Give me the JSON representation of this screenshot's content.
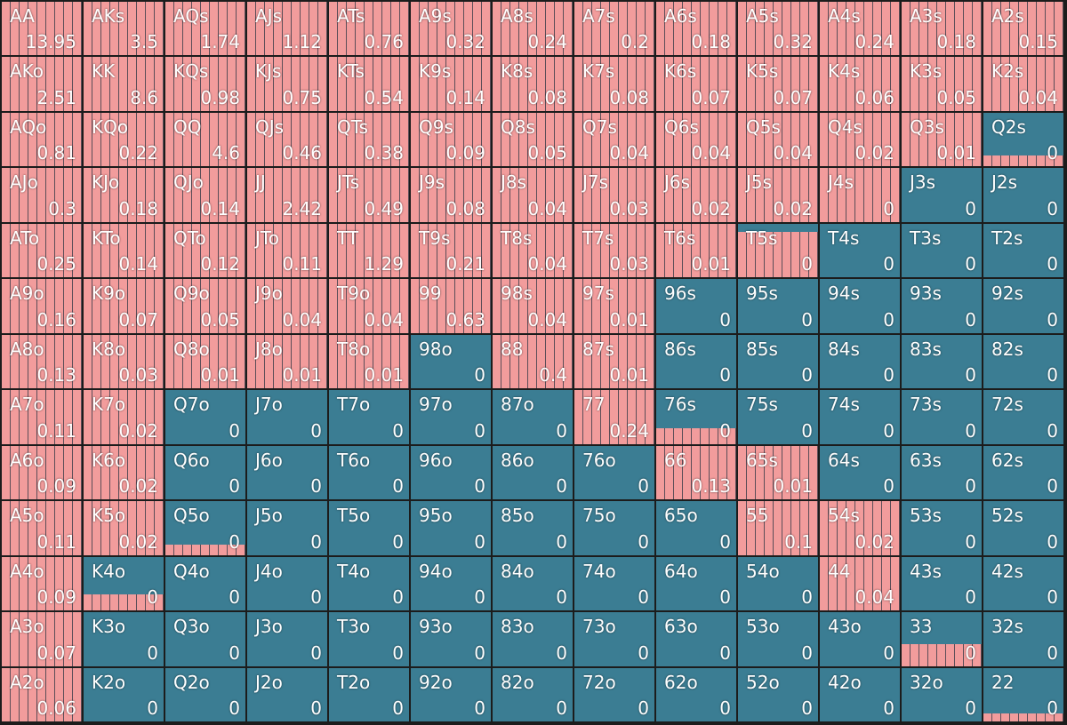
{
  "grid": {
    "rows": [
      [
        {
          "hand": "AA",
          "value": 13.95,
          "fill": 1
        },
        {
          "hand": "AKs",
          "value": 3.5,
          "fill": 1
        },
        {
          "hand": "AQs",
          "value": 1.74,
          "fill": 1
        },
        {
          "hand": "AJs",
          "value": 1.12,
          "fill": 1
        },
        {
          "hand": "ATs",
          "value": 0.76,
          "fill": 1
        },
        {
          "hand": "A9s",
          "value": 0.32,
          "fill": 1
        },
        {
          "hand": "A8s",
          "value": 0.24,
          "fill": 1
        },
        {
          "hand": "A7s",
          "value": 0.2,
          "fill": 1
        },
        {
          "hand": "A6s",
          "value": 0.18,
          "fill": 1
        },
        {
          "hand": "A5s",
          "value": 0.32,
          "fill": 1
        },
        {
          "hand": "A4s",
          "value": 0.24,
          "fill": 1
        },
        {
          "hand": "A3s",
          "value": 0.18,
          "fill": 1
        },
        {
          "hand": "A2s",
          "value": 0.15,
          "fill": 1
        }
      ],
      [
        {
          "hand": "AKo",
          "value": 2.51,
          "fill": 1
        },
        {
          "hand": "KK",
          "value": 8.6,
          "fill": 1
        },
        {
          "hand": "KQs",
          "value": 0.98,
          "fill": 1
        },
        {
          "hand": "KJs",
          "value": 0.75,
          "fill": 1
        },
        {
          "hand": "KTs",
          "value": 0.54,
          "fill": 1
        },
        {
          "hand": "K9s",
          "value": 0.14,
          "fill": 1
        },
        {
          "hand": "K8s",
          "value": 0.08,
          "fill": 1
        },
        {
          "hand": "K7s",
          "value": 0.08,
          "fill": 1
        },
        {
          "hand": "K6s",
          "value": 0.07,
          "fill": 1
        },
        {
          "hand": "K5s",
          "value": 0.07,
          "fill": 1
        },
        {
          "hand": "K4s",
          "value": 0.06,
          "fill": 1
        },
        {
          "hand": "K3s",
          "value": 0.05,
          "fill": 1
        },
        {
          "hand": "K2s",
          "value": 0.04,
          "fill": 1
        }
      ],
      [
        {
          "hand": "AQo",
          "value": 0.81,
          "fill": 1
        },
        {
          "hand": "KQo",
          "value": 0.22,
          "fill": 1
        },
        {
          "hand": "QQ",
          "value": 4.6,
          "fill": 1
        },
        {
          "hand": "QJs",
          "value": 0.46,
          "fill": 1
        },
        {
          "hand": "QTs",
          "value": 0.38,
          "fill": 1
        },
        {
          "hand": "Q9s",
          "value": 0.09,
          "fill": 1
        },
        {
          "hand": "Q8s",
          "value": 0.05,
          "fill": 1
        },
        {
          "hand": "Q7s",
          "value": 0.04,
          "fill": 1
        },
        {
          "hand": "Q6s",
          "value": 0.04,
          "fill": 1
        },
        {
          "hand": "Q5s",
          "value": 0.04,
          "fill": 1
        },
        {
          "hand": "Q4s",
          "value": 0.02,
          "fill": 1
        },
        {
          "hand": "Q3s",
          "value": 0.01,
          "fill": 1
        },
        {
          "hand": "Q2s",
          "value": 0,
          "fill": 0.2
        }
      ],
      [
        {
          "hand": "AJo",
          "value": 0.3,
          "fill": 1
        },
        {
          "hand": "KJo",
          "value": 0.18,
          "fill": 1
        },
        {
          "hand": "QJo",
          "value": 0.14,
          "fill": 1
        },
        {
          "hand": "JJ",
          "value": 2.42,
          "fill": 1
        },
        {
          "hand": "JTs",
          "value": 0.49,
          "fill": 1
        },
        {
          "hand": "J9s",
          "value": 0.08,
          "fill": 1
        },
        {
          "hand": "J8s",
          "value": 0.04,
          "fill": 1
        },
        {
          "hand": "J7s",
          "value": 0.03,
          "fill": 1
        },
        {
          "hand": "J6s",
          "value": 0.02,
          "fill": 1
        },
        {
          "hand": "J5s",
          "value": 0.02,
          "fill": 1
        },
        {
          "hand": "J4s",
          "value": 0,
          "fill": 1
        },
        {
          "hand": "J3s",
          "value": 0,
          "fill": 0
        },
        {
          "hand": "J2s",
          "value": 0,
          "fill": 0
        }
      ],
      [
        {
          "hand": "ATo",
          "value": 0.25,
          "fill": 1
        },
        {
          "hand": "KTo",
          "value": 0.14,
          "fill": 1
        },
        {
          "hand": "QTo",
          "value": 0.12,
          "fill": 1
        },
        {
          "hand": "JTo",
          "value": 0.11,
          "fill": 1
        },
        {
          "hand": "TT",
          "value": 1.29,
          "fill": 1
        },
        {
          "hand": "T9s",
          "value": 0.21,
          "fill": 1
        },
        {
          "hand": "T8s",
          "value": 0.04,
          "fill": 1
        },
        {
          "hand": "T7s",
          "value": 0.03,
          "fill": 1
        },
        {
          "hand": "T6s",
          "value": 0.01,
          "fill": 1
        },
        {
          "hand": "T5s",
          "value": 0,
          "fill": 0.85
        },
        {
          "hand": "T4s",
          "value": 0,
          "fill": 0
        },
        {
          "hand": "T3s",
          "value": 0,
          "fill": 0
        },
        {
          "hand": "T2s",
          "value": 0,
          "fill": 0
        }
      ],
      [
        {
          "hand": "A9o",
          "value": 0.16,
          "fill": 1
        },
        {
          "hand": "K9o",
          "value": 0.07,
          "fill": 1
        },
        {
          "hand": "Q9o",
          "value": 0.05,
          "fill": 1
        },
        {
          "hand": "J9o",
          "value": 0.04,
          "fill": 1
        },
        {
          "hand": "T9o",
          "value": 0.04,
          "fill": 1
        },
        {
          "hand": "99",
          "value": 0.63,
          "fill": 1
        },
        {
          "hand": "98s",
          "value": 0.04,
          "fill": 1
        },
        {
          "hand": "97s",
          "value": 0.01,
          "fill": 1
        },
        {
          "hand": "96s",
          "value": 0,
          "fill": 0
        },
        {
          "hand": "95s",
          "value": 0,
          "fill": 0
        },
        {
          "hand": "94s",
          "value": 0,
          "fill": 0
        },
        {
          "hand": "93s",
          "value": 0,
          "fill": 0
        },
        {
          "hand": "92s",
          "value": 0,
          "fill": 0
        }
      ],
      [
        {
          "hand": "A8o",
          "value": 0.13,
          "fill": 1
        },
        {
          "hand": "K8o",
          "value": 0.03,
          "fill": 1
        },
        {
          "hand": "Q8o",
          "value": 0.01,
          "fill": 1
        },
        {
          "hand": "J8o",
          "value": 0.01,
          "fill": 1
        },
        {
          "hand": "T8o",
          "value": 0.01,
          "fill": 1
        },
        {
          "hand": "98o",
          "value": 0,
          "fill": 0
        },
        {
          "hand": "88",
          "value": 0.4,
          "fill": 1
        },
        {
          "hand": "87s",
          "value": 0.01,
          "fill": 1
        },
        {
          "hand": "86s",
          "value": 0,
          "fill": 0
        },
        {
          "hand": "85s",
          "value": 0,
          "fill": 0
        },
        {
          "hand": "84s",
          "value": 0,
          "fill": 0
        },
        {
          "hand": "83s",
          "value": 0,
          "fill": 0
        },
        {
          "hand": "82s",
          "value": 0,
          "fill": 0
        }
      ],
      [
        {
          "hand": "A7o",
          "value": 0.11,
          "fill": 1
        },
        {
          "hand": "K7o",
          "value": 0.02,
          "fill": 1
        },
        {
          "hand": "Q7o",
          "value": 0,
          "fill": 0
        },
        {
          "hand": "J7o",
          "value": 0,
          "fill": 0
        },
        {
          "hand": "T7o",
          "value": 0,
          "fill": 0
        },
        {
          "hand": "97o",
          "value": 0,
          "fill": 0
        },
        {
          "hand": "87o",
          "value": 0,
          "fill": 0
        },
        {
          "hand": "77",
          "value": 0.24,
          "fill": 1
        },
        {
          "hand": "76s",
          "value": 0,
          "fill": 0.3
        },
        {
          "hand": "75s",
          "value": 0,
          "fill": 0
        },
        {
          "hand": "74s",
          "value": 0,
          "fill": 0
        },
        {
          "hand": "73s",
          "value": 0,
          "fill": 0
        },
        {
          "hand": "72s",
          "value": 0,
          "fill": 0
        }
      ],
      [
        {
          "hand": "A6o",
          "value": 0.09,
          "fill": 1
        },
        {
          "hand": "K6o",
          "value": 0.02,
          "fill": 1
        },
        {
          "hand": "Q6o",
          "value": 0,
          "fill": 0
        },
        {
          "hand": "J6o",
          "value": 0,
          "fill": 0
        },
        {
          "hand": "T6o",
          "value": 0,
          "fill": 0
        },
        {
          "hand": "96o",
          "value": 0,
          "fill": 0
        },
        {
          "hand": "86o",
          "value": 0,
          "fill": 0
        },
        {
          "hand": "76o",
          "value": 0,
          "fill": 0
        },
        {
          "hand": "66",
          "value": 0.13,
          "fill": 1
        },
        {
          "hand": "65s",
          "value": 0.01,
          "fill": 1
        },
        {
          "hand": "64s",
          "value": 0,
          "fill": 0
        },
        {
          "hand": "63s",
          "value": 0,
          "fill": 0
        },
        {
          "hand": "62s",
          "value": 0,
          "fill": 0
        }
      ],
      [
        {
          "hand": "A5o",
          "value": 0.11,
          "fill": 1
        },
        {
          "hand": "K5o",
          "value": 0.02,
          "fill": 1
        },
        {
          "hand": "Q5o",
          "value": 0,
          "fill": 0.2
        },
        {
          "hand": "J5o",
          "value": 0,
          "fill": 0
        },
        {
          "hand": "T5o",
          "value": 0,
          "fill": 0
        },
        {
          "hand": "95o",
          "value": 0,
          "fill": 0
        },
        {
          "hand": "85o",
          "value": 0,
          "fill": 0
        },
        {
          "hand": "75o",
          "value": 0,
          "fill": 0
        },
        {
          "hand": "65o",
          "value": 0,
          "fill": 0
        },
        {
          "hand": "55",
          "value": 0.1,
          "fill": 1
        },
        {
          "hand": "54s",
          "value": 0.02,
          "fill": 1
        },
        {
          "hand": "53s",
          "value": 0,
          "fill": 0
        },
        {
          "hand": "52s",
          "value": 0,
          "fill": 0
        }
      ],
      [
        {
          "hand": "A4o",
          "value": 0.09,
          "fill": 1
        },
        {
          "hand": "K4o",
          "value": 0,
          "fill": 0.3
        },
        {
          "hand": "Q4o",
          "value": 0,
          "fill": 0
        },
        {
          "hand": "J4o",
          "value": 0,
          "fill": 0
        },
        {
          "hand": "T4o",
          "value": 0,
          "fill": 0
        },
        {
          "hand": "94o",
          "value": 0,
          "fill": 0
        },
        {
          "hand": "84o",
          "value": 0,
          "fill": 0
        },
        {
          "hand": "74o",
          "value": 0,
          "fill": 0
        },
        {
          "hand": "64o",
          "value": 0,
          "fill": 0
        },
        {
          "hand": "54o",
          "value": 0,
          "fill": 0
        },
        {
          "hand": "44",
          "value": 0.04,
          "fill": 1
        },
        {
          "hand": "43s",
          "value": 0,
          "fill": 0
        },
        {
          "hand": "42s",
          "value": 0,
          "fill": 0
        }
      ],
      [
        {
          "hand": "A3o",
          "value": 0.07,
          "fill": 1
        },
        {
          "hand": "K3o",
          "value": 0,
          "fill": 0
        },
        {
          "hand": "Q3o",
          "value": 0,
          "fill": 0
        },
        {
          "hand": "J3o",
          "value": 0,
          "fill": 0
        },
        {
          "hand": "T3o",
          "value": 0,
          "fill": 0
        },
        {
          "hand": "93o",
          "value": 0,
          "fill": 0
        },
        {
          "hand": "83o",
          "value": 0,
          "fill": 0
        },
        {
          "hand": "73o",
          "value": 0,
          "fill": 0
        },
        {
          "hand": "63o",
          "value": 0,
          "fill": 0
        },
        {
          "hand": "53o",
          "value": 0,
          "fill": 0
        },
        {
          "hand": "43o",
          "value": 0,
          "fill": 0
        },
        {
          "hand": "33",
          "value": 0,
          "fill": 0.4
        },
        {
          "hand": "32s",
          "value": 0,
          "fill": 0
        }
      ],
      [
        {
          "hand": "A2o",
          "value": 0.06,
          "fill": 1
        },
        {
          "hand": "K2o",
          "value": 0,
          "fill": 0
        },
        {
          "hand": "Q2o",
          "value": 0,
          "fill": 0
        },
        {
          "hand": "J2o",
          "value": 0,
          "fill": 0
        },
        {
          "hand": "T2o",
          "value": 0,
          "fill": 0
        },
        {
          "hand": "92o",
          "value": 0,
          "fill": 0
        },
        {
          "hand": "82o",
          "value": 0,
          "fill": 0
        },
        {
          "hand": "72o",
          "value": 0,
          "fill": 0
        },
        {
          "hand": "62o",
          "value": 0,
          "fill": 0
        },
        {
          "hand": "52o",
          "value": 0,
          "fill": 0
        },
        {
          "hand": "42o",
          "value": 0,
          "fill": 0
        },
        {
          "hand": "32o",
          "value": 0,
          "fill": 0
        },
        {
          "hand": "22",
          "value": 0,
          "fill": 0.15
        }
      ]
    ]
  }
}
